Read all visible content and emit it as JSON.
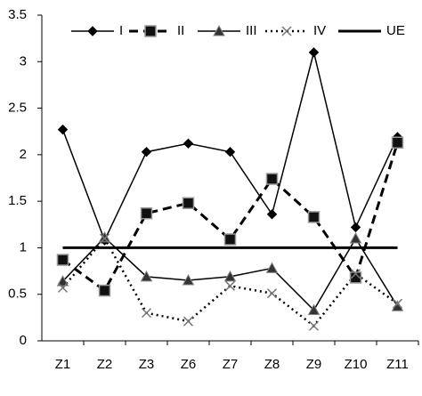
{
  "chart_data": {
    "type": "line",
    "categories": [
      "Z1",
      "Z2",
      "Z3",
      "Z6",
      "Z7",
      "Z8",
      "Z9",
      "Z10",
      "Z11"
    ],
    "ylim": [
      0,
      3.5
    ],
    "yticks": [
      0,
      0.5,
      1,
      1.5,
      2,
      2.5,
      3,
      3.5
    ],
    "legend": "top",
    "series": [
      {
        "name": "I",
        "color": "#000000",
        "marker": "diamond",
        "dash": "solid",
        "width": 1.5,
        "values": [
          2.27,
          1.08,
          2.03,
          2.12,
          2.03,
          1.36,
          3.1,
          1.22,
          2.19
        ]
      },
      {
        "name": "II",
        "color": "#000000",
        "marker": "square",
        "dash": "dashed",
        "width": 3,
        "values": [
          0.87,
          0.54,
          1.37,
          1.48,
          1.09,
          1.74,
          1.33,
          0.68,
          2.13
        ]
      },
      {
        "name": "III",
        "color": "#000000",
        "marker": "triangle",
        "dash": "solid",
        "width": 1.5,
        "values": [
          0.64,
          1.11,
          0.69,
          0.65,
          0.69,
          0.78,
          0.33,
          1.1,
          0.37
        ]
      },
      {
        "name": "IV",
        "color": "#000000",
        "marker": "x",
        "dash": "dotted",
        "width": 2.5,
        "values": [
          0.57,
          1.1,
          0.3,
          0.21,
          0.59,
          0.51,
          0.16,
          0.72,
          0.4
        ]
      },
      {
        "name": "UE",
        "color": "#000000",
        "marker": "none",
        "dash": "solid",
        "width": 3,
        "values": [
          1,
          1,
          1,
          1,
          1,
          1,
          1,
          1,
          1
        ]
      }
    ]
  }
}
